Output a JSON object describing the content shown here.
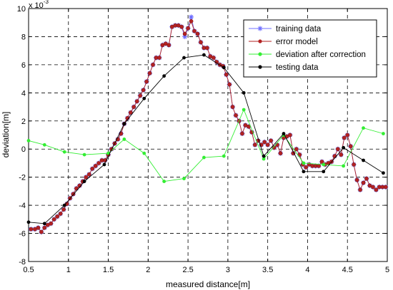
{
  "chart_data": {
    "type": "line",
    "xlabel": "measured distance[m]",
    "ylabel": "deviation[m]",
    "exponent_label": "x 10",
    "exponent_power": "-3",
    "xlim": [
      0.5,
      5
    ],
    "ylim": [
      -8,
      10
    ],
    "xticks": [
      "0.5",
      "1",
      "1.5",
      "2",
      "2.5",
      "3",
      "3.5",
      "4",
      "4.5",
      "5"
    ],
    "yticks": [
      "-8",
      "-6",
      "-4",
      "-2",
      "0",
      "2",
      "4",
      "6",
      "8",
      "10"
    ],
    "grid": true,
    "legend_position": "top-right",
    "series": [
      {
        "name": "training data",
        "color": "#6f6fff",
        "marker": "star",
        "x": [
          0.53,
          0.58,
          0.62,
          0.66,
          0.7,
          0.74,
          0.78,
          0.82,
          0.86,
          0.9,
          0.94,
          0.98,
          1.02,
          1.06,
          1.1,
          1.14,
          1.18,
          1.22,
          1.26,
          1.3,
          1.34,
          1.38,
          1.42,
          1.46,
          1.5,
          1.54,
          1.58,
          1.62,
          1.66,
          1.7,
          1.74,
          1.78,
          1.82,
          1.86,
          1.9,
          1.94,
          1.98,
          2.02,
          2.06,
          2.1,
          2.14,
          2.18,
          2.22,
          2.26,
          2.3,
          2.34,
          2.38,
          2.42,
          2.46,
          2.5,
          2.54,
          2.58,
          2.62,
          2.66,
          2.7,
          2.74,
          2.78,
          2.82,
          2.86,
          2.9,
          2.94,
          2.98,
          3.02,
          3.06,
          3.1,
          3.14,
          3.18,
          3.22,
          3.26,
          3.3,
          3.34,
          3.38,
          3.42,
          3.46,
          3.5,
          3.54,
          3.58,
          3.62,
          3.66,
          3.7,
          3.74,
          3.78,
          3.82,
          3.86,
          3.9,
          3.94,
          3.98,
          4.02,
          4.06,
          4.1,
          4.14,
          4.18,
          4.22,
          4.26,
          4.3,
          4.34,
          4.38,
          4.42,
          4.46,
          4.5,
          4.54,
          4.58,
          4.62,
          4.66,
          4.7,
          4.74,
          4.78,
          4.82,
          4.86,
          4.9,
          4.94,
          4.98
        ],
        "y": [
          -5.7,
          -5.7,
          -5.6,
          -5.9,
          -5.6,
          -5.4,
          -5.3,
          -5.0,
          -4.8,
          -4.6,
          -4.3,
          -3.9,
          -3.5,
          -3.2,
          -2.8,
          -2.6,
          -2.3,
          -2.0,
          -1.8,
          -1.4,
          -1.2,
          -1.0,
          -0.8,
          -0.8,
          -0.4,
          0.0,
          0.4,
          0.7,
          1.1,
          1.8,
          2.2,
          2.6,
          3.0,
          3.4,
          3.8,
          4.2,
          4.8,
          5.4,
          6.0,
          6.5,
          6.5,
          7.4,
          7.5,
          7.4,
          8.7,
          8.8,
          8.8,
          8.7,
          8.0,
          8.6,
          9.4,
          8.4,
          8.2,
          7.6,
          7.2,
          7.2,
          6.6,
          6.5,
          6.2,
          6.0,
          5.9,
          5.3,
          4.6,
          3.0,
          2.4,
          2.0,
          1.1,
          1.7,
          1.6,
          1.2,
          0.3,
          0.6,
          0.3,
          0.5,
          0.3,
          0.6,
          0.1,
          0.3,
          -0.3,
          0.8,
          0.9,
          1.0,
          -0.3,
          0.0,
          -0.4,
          -1.1,
          -1.3,
          -1.1,
          -1.2,
          -1.2,
          -1.2,
          -0.9,
          -1.1,
          -1.0,
          -0.9,
          -0.5,
          0.0,
          -0.4,
          0.8,
          1.0,
          0.2,
          -1.1,
          -2.2,
          -2.9,
          -2.4,
          -2.1,
          -2.6,
          -2.7,
          -2.9,
          -2.7,
          -2.7,
          -2.7
        ]
      },
      {
        "name": "error model",
        "color": "#b22222",
        "marker": "circle",
        "x": [
          0.53,
          0.58,
          0.62,
          0.66,
          0.7,
          0.74,
          0.78,
          0.82,
          0.86,
          0.9,
          0.94,
          0.98,
          1.02,
          1.06,
          1.1,
          1.14,
          1.18,
          1.22,
          1.26,
          1.3,
          1.34,
          1.38,
          1.42,
          1.46,
          1.5,
          1.54,
          1.58,
          1.62,
          1.66,
          1.7,
          1.74,
          1.78,
          1.82,
          1.86,
          1.9,
          1.94,
          1.98,
          2.02,
          2.06,
          2.1,
          2.14,
          2.18,
          2.22,
          2.26,
          2.3,
          2.34,
          2.38,
          2.42,
          2.46,
          2.5,
          2.54,
          2.58,
          2.62,
          2.66,
          2.7,
          2.74,
          2.78,
          2.82,
          2.86,
          2.9,
          2.94,
          2.98,
          3.02,
          3.06,
          3.1,
          3.14,
          3.18,
          3.22,
          3.26,
          3.3,
          3.34,
          3.38,
          3.42,
          3.46,
          3.5,
          3.54,
          3.58,
          3.62,
          3.66,
          3.7,
          3.74,
          3.78,
          3.82,
          3.86,
          3.9,
          3.94,
          3.98,
          4.02,
          4.06,
          4.1,
          4.14,
          4.18,
          4.22,
          4.26,
          4.3,
          4.34,
          4.38,
          4.42,
          4.46,
          4.5,
          4.54,
          4.58,
          4.62,
          4.66,
          4.7,
          4.74,
          4.78,
          4.82,
          4.86,
          4.9,
          4.94,
          4.98
        ],
        "y": [
          -5.7,
          -5.7,
          -5.6,
          -5.9,
          -5.6,
          -5.4,
          -5.3,
          -5.0,
          -4.8,
          -4.6,
          -4.3,
          -3.9,
          -3.5,
          -3.2,
          -2.8,
          -2.6,
          -2.3,
          -2.0,
          -1.8,
          -1.4,
          -1.2,
          -1.0,
          -0.8,
          -0.8,
          -0.4,
          0.0,
          0.4,
          0.7,
          1.1,
          1.8,
          2.2,
          2.6,
          3.0,
          3.4,
          3.8,
          4.2,
          4.8,
          5.4,
          6.0,
          6.5,
          6.5,
          7.4,
          7.5,
          7.4,
          8.7,
          8.8,
          8.8,
          8.7,
          8.2,
          8.6,
          9.1,
          8.4,
          8.2,
          7.6,
          7.2,
          7.2,
          6.6,
          6.5,
          6.2,
          6.0,
          5.9,
          5.3,
          4.6,
          3.0,
          2.4,
          2.0,
          1.1,
          1.7,
          1.6,
          1.2,
          0.3,
          0.6,
          0.3,
          0.5,
          0.3,
          0.6,
          0.1,
          0.3,
          -0.3,
          0.8,
          0.9,
          1.0,
          -0.3,
          0.0,
          -0.4,
          -1.1,
          -1.3,
          -1.1,
          -1.2,
          -1.2,
          -1.2,
          -0.9,
          -1.1,
          -1.0,
          -0.9,
          -0.5,
          0.0,
          -0.4,
          0.8,
          1.0,
          0.2,
          -1.1,
          -2.2,
          -2.9,
          -2.4,
          -2.1,
          -2.6,
          -2.7,
          -2.9,
          -2.7,
          -2.7,
          -2.7
        ]
      },
      {
        "name": "deviation after correction",
        "color": "#33ee33",
        "marker": "dot",
        "x": [
          0.5,
          0.7,
          0.95,
          1.2,
          1.5,
          1.7,
          1.95,
          2.2,
          2.45,
          2.7,
          2.95,
          3.2,
          3.45,
          3.7,
          3.95,
          4.2,
          4.45,
          4.7,
          4.95
        ],
        "y": [
          0.6,
          0.3,
          -0.2,
          -0.4,
          -0.3,
          0.7,
          -0.3,
          -2.3,
          -2.1,
          -0.6,
          -0.5,
          2.8,
          -0.7,
          1.0,
          -1.0,
          -1.1,
          -1.2,
          1.5,
          1.1
        ]
      },
      {
        "name": "testing data",
        "color": "#000000",
        "marker": "dot",
        "x": [
          0.5,
          0.7,
          0.95,
          1.2,
          1.45,
          1.7,
          1.95,
          2.2,
          2.45,
          2.7,
          2.95,
          3.2,
          3.45,
          3.7,
          3.95,
          4.2,
          4.45,
          4.7,
          4.95
        ],
        "y": [
          -5.2,
          -5.3,
          -4.0,
          -2.3,
          -1.1,
          1.8,
          3.6,
          5.2,
          6.5,
          6.7,
          5.8,
          4.0,
          -0.5,
          1.1,
          -1.6,
          -1.6,
          0.1,
          -0.8,
          -1.7
        ]
      }
    ]
  }
}
